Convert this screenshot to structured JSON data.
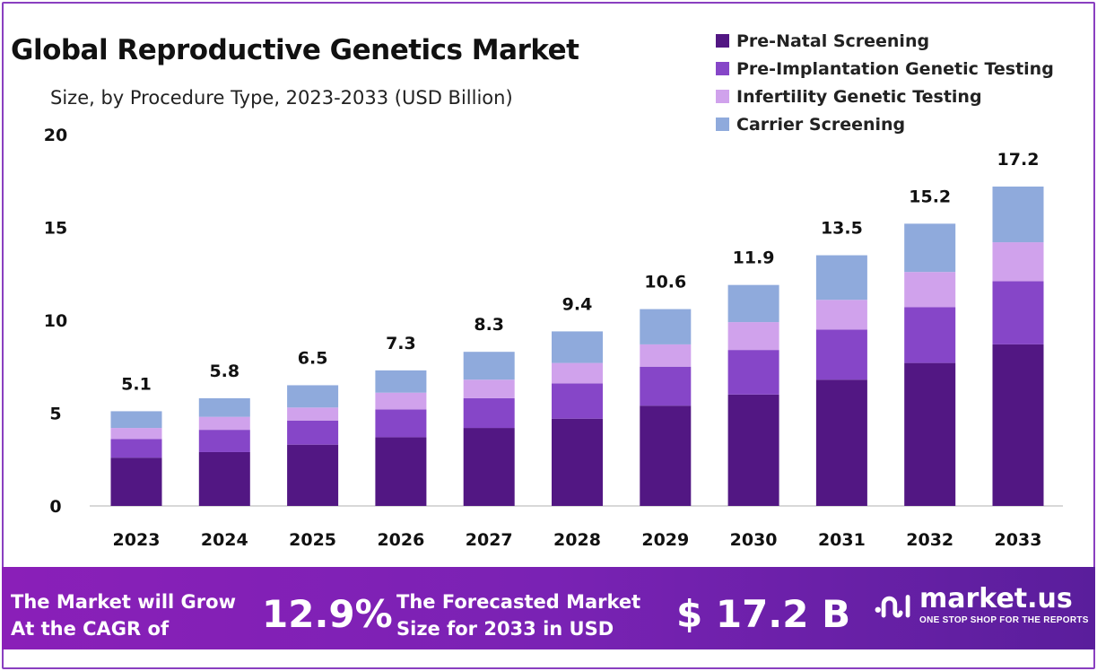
{
  "chart_data": {
    "type": "bar",
    "stacked": true,
    "title": "Global Reproductive Genetics Market",
    "subtitle": "Size, by Procedure  Type, 2023-2033 (USD Billion)",
    "categories": [
      "2023",
      "2024",
      "2025",
      "2026",
      "2027",
      "2028",
      "2029",
      "2030",
      "2031",
      "2032",
      "2033"
    ],
    "series": [
      {
        "name": "Pre-Natal Screening",
        "color": "#521783",
        "values": [
          2.6,
          2.9,
          3.3,
          3.7,
          4.2,
          4.7,
          5.4,
          6.0,
          6.8,
          7.7,
          8.7
        ]
      },
      {
        "name": "Pre-Implantation Genetic Testing",
        "color": "#8646c8",
        "values": [
          1.0,
          1.2,
          1.3,
          1.5,
          1.6,
          1.9,
          2.1,
          2.4,
          2.7,
          3.0,
          3.4
        ]
      },
      {
        "name": "Infertility Genetic Testing",
        "color": "#d0a2ec",
        "values": [
          0.6,
          0.7,
          0.7,
          0.9,
          1.0,
          1.1,
          1.2,
          1.5,
          1.6,
          1.9,
          2.1
        ]
      },
      {
        "name": "Carrier Screening",
        "color": "#8faadc",
        "values": [
          0.9,
          1.0,
          1.2,
          1.2,
          1.5,
          1.7,
          1.9,
          2.0,
          2.4,
          2.6,
          3.0
        ]
      }
    ],
    "totals": [
      "5.1",
      "5.8",
      "6.5",
      "7.3",
      "8.3",
      "9.4",
      "10.6",
      "11.9",
      "13.5",
      "15.2",
      "17.2"
    ],
    "yticks": [
      "0",
      "5",
      "10",
      "15",
      "20"
    ],
    "ylim": [
      0,
      20
    ],
    "grid": false,
    "legend": "top-right"
  },
  "banner": {
    "cagr_label": "The Market will Grow At the CAGR of",
    "cagr_value": "12.9%",
    "forecast_label": "The Forecasted Market Size for 2033 in USD",
    "forecast_value": "$ 17.2 B",
    "logo_text": "market.us",
    "logo_tagline": "ONE STOP SHOP FOR THE REPORTS"
  }
}
